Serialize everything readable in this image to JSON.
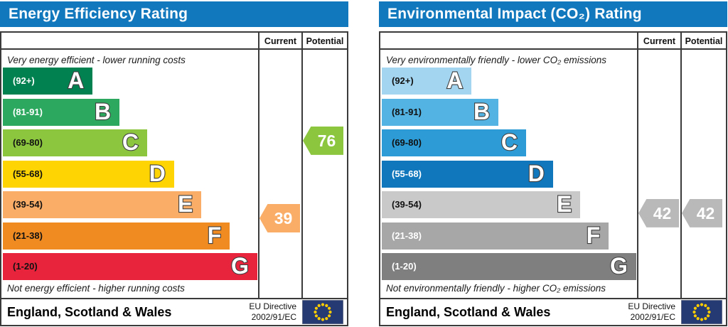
{
  "colors": {
    "header_blue": "#1278bd",
    "border": "#3b3b3b",
    "flag_navy": "#253a72",
    "flag_star": "#ffcc00"
  },
  "panels": [
    {
      "title": "Energy Efficiency Rating",
      "top_caption": "Very energy efficient - lower running costs",
      "bottom_caption": "Not energy efficient - higher running costs",
      "columns": {
        "current": "Current",
        "potential": "Potential"
      },
      "bands": [
        {
          "letter": "A",
          "range": "(92+)",
          "min": 92,
          "max": 100,
          "color": "#018150",
          "label_color": "#ffffff",
          "width_pct": 35.1
        },
        {
          "letter": "B",
          "range": "(81-91)",
          "min": 81,
          "max": 91,
          "color": "#2ca95f",
          "label_color": "#ffffff",
          "width_pct": 45.6
        },
        {
          "letter": "C",
          "range": "(69-80)",
          "min": 69,
          "max": 80,
          "color": "#8cc63f",
          "label_color": "#111111",
          "width_pct": 56.4
        },
        {
          "letter": "D",
          "range": "(55-68)",
          "min": 55,
          "max": 68,
          "color": "#fed402",
          "label_color": "#111111",
          "width_pct": 66.9
        },
        {
          "letter": "E",
          "range": "(39-54)",
          "min": 39,
          "max": 54,
          "color": "#f9ad67",
          "label_color": "#111111",
          "width_pct": 77.6
        },
        {
          "letter": "F",
          "range": "(21-38)",
          "min": 21,
          "max": 38,
          "color": "#f08b22",
          "label_color": "#111111",
          "width_pct": 88.7
        },
        {
          "letter": "G",
          "range": "(1-20)",
          "min": 1,
          "max": 20,
          "color": "#e8233c",
          "label_color": "#111111",
          "width_pct": 99.4
        }
      ],
      "current": {
        "value": "39",
        "score": 39,
        "color": "#f9ad67"
      },
      "potential": {
        "value": "76",
        "score": 76,
        "color": "#8cc63f"
      },
      "footer": {
        "region": "England, Scotland & Wales",
        "directive_line1": "EU Directive",
        "directive_line2": "2002/91/EC"
      }
    },
    {
      "title": "Environmental Impact (CO₂) Rating",
      "top_caption": "Very environmentally friendly - lower CO₂ emissions",
      "bottom_caption": "Not environmentally friendly - higher CO₂ emissions",
      "columns": {
        "current": "Current",
        "potential": "Potential"
      },
      "bands": [
        {
          "letter": "A",
          "range": "(92+)",
          "min": 92,
          "max": 100,
          "color": "#a3d5f0",
          "label_color": "#111111",
          "width_pct": 35.1
        },
        {
          "letter": "B",
          "range": "(81-91)",
          "min": 81,
          "max": 91,
          "color": "#53b4e4",
          "label_color": "#111111",
          "width_pct": 45.6
        },
        {
          "letter": "C",
          "range": "(69-80)",
          "min": 69,
          "max": 80,
          "color": "#2d9cd6",
          "label_color": "#111111",
          "width_pct": 56.4
        },
        {
          "letter": "D",
          "range": "(55-68)",
          "min": 55,
          "max": 68,
          "color": "#1077bc",
          "label_color": "#ffffff",
          "width_pct": 66.9
        },
        {
          "letter": "E",
          "range": "(39-54)",
          "min": 39,
          "max": 54,
          "color": "#c9c9c9",
          "label_color": "#111111",
          "width_pct": 77.6
        },
        {
          "letter": "F",
          "range": "(21-38)",
          "min": 21,
          "max": 38,
          "color": "#a7a7a7",
          "label_color": "#ffffff",
          "width_pct": 88.7
        },
        {
          "letter": "G",
          "range": "(1-20)",
          "min": 1,
          "max": 20,
          "color": "#7f7f7f",
          "label_color": "#ffffff",
          "width_pct": 99.4
        }
      ],
      "current": {
        "value": "42",
        "score": 42,
        "color": "#b9b9b9"
      },
      "potential": {
        "value": "42",
        "score": 42,
        "color": "#b9b9b9"
      },
      "footer": {
        "region": "England, Scotland & Wales",
        "directive_line1": "EU Directive",
        "directive_line2": "2002/91/EC"
      }
    }
  ],
  "chart_data": [
    {
      "type": "bar",
      "title": "Energy Efficiency Rating",
      "categories": [
        "A (92+)",
        "B (81-91)",
        "C (69-80)",
        "D (55-68)",
        "E (39-54)",
        "F (21-38)",
        "G (1-20)"
      ],
      "bar_width_pct": [
        35.1,
        45.6,
        56.4,
        66.9,
        77.6,
        88.7,
        99.4
      ],
      "current_rating": 39,
      "current_band": "E",
      "potential_rating": 76,
      "potential_band": "C",
      "top_note": "Very energy efficient - lower running costs",
      "bottom_note": "Not energy efficient - higher running costs",
      "region": "England, Scotland & Wales",
      "directive": "EU Directive 2002/91/EC"
    },
    {
      "type": "bar",
      "title": "Environmental Impact (CO₂) Rating",
      "categories": [
        "A (92+)",
        "B (81-91)",
        "C (69-80)",
        "D (55-68)",
        "E (39-54)",
        "F (21-38)",
        "G (1-20)"
      ],
      "bar_width_pct": [
        35.1,
        45.6,
        56.4,
        66.9,
        77.6,
        88.7,
        99.4
      ],
      "current_rating": 42,
      "current_band": "E",
      "potential_rating": 42,
      "potential_band": "E",
      "top_note": "Very environmentally friendly - lower CO₂ emissions",
      "bottom_note": "Not environmentally friendly - higher CO₂ emissions",
      "region": "England, Scotland & Wales",
      "directive": "EU Directive 2002/91/EC"
    }
  ]
}
